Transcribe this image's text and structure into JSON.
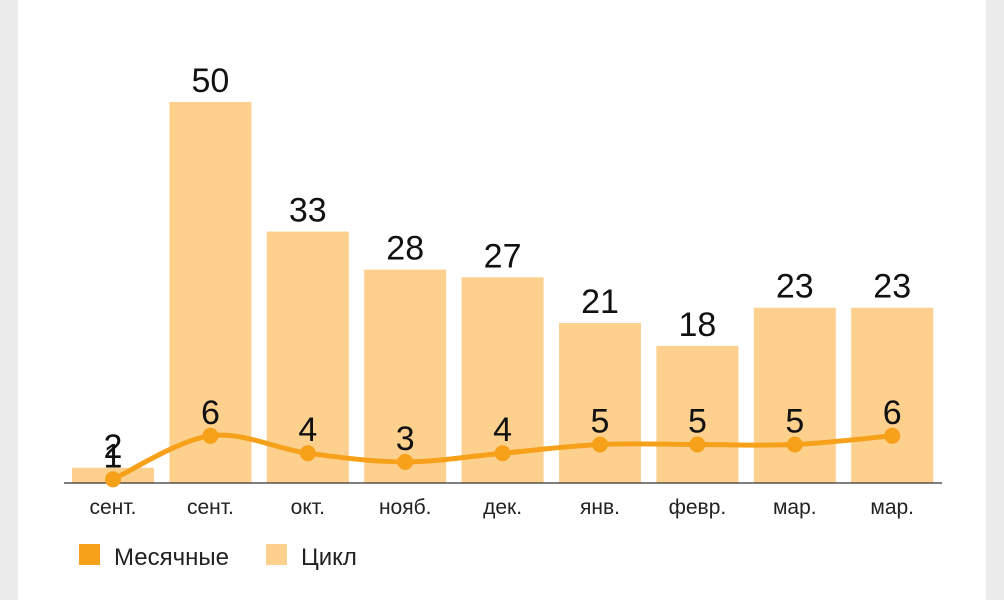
{
  "chart_data": {
    "type": "bar",
    "categories": [
      "сент.",
      "сент.",
      "окт.",
      "нояб.",
      "дек.",
      "янв.",
      "февр.",
      "мар.",
      "мар."
    ],
    "series": [
      {
        "name": "Цикл",
        "type": "bar",
        "values": [
          2,
          50,
          33,
          28,
          27,
          21,
          18,
          23,
          23
        ],
        "color": "#fdd08e"
      },
      {
        "name": "Месячные",
        "type": "line",
        "values": [
          1,
          6,
          4,
          3,
          4,
          5,
          5,
          5,
          6
        ],
        "color": "#f7a11a"
      }
    ],
    "ylim": [
      0,
      50
    ],
    "grid": false,
    "legend": "bottom-left"
  }
}
